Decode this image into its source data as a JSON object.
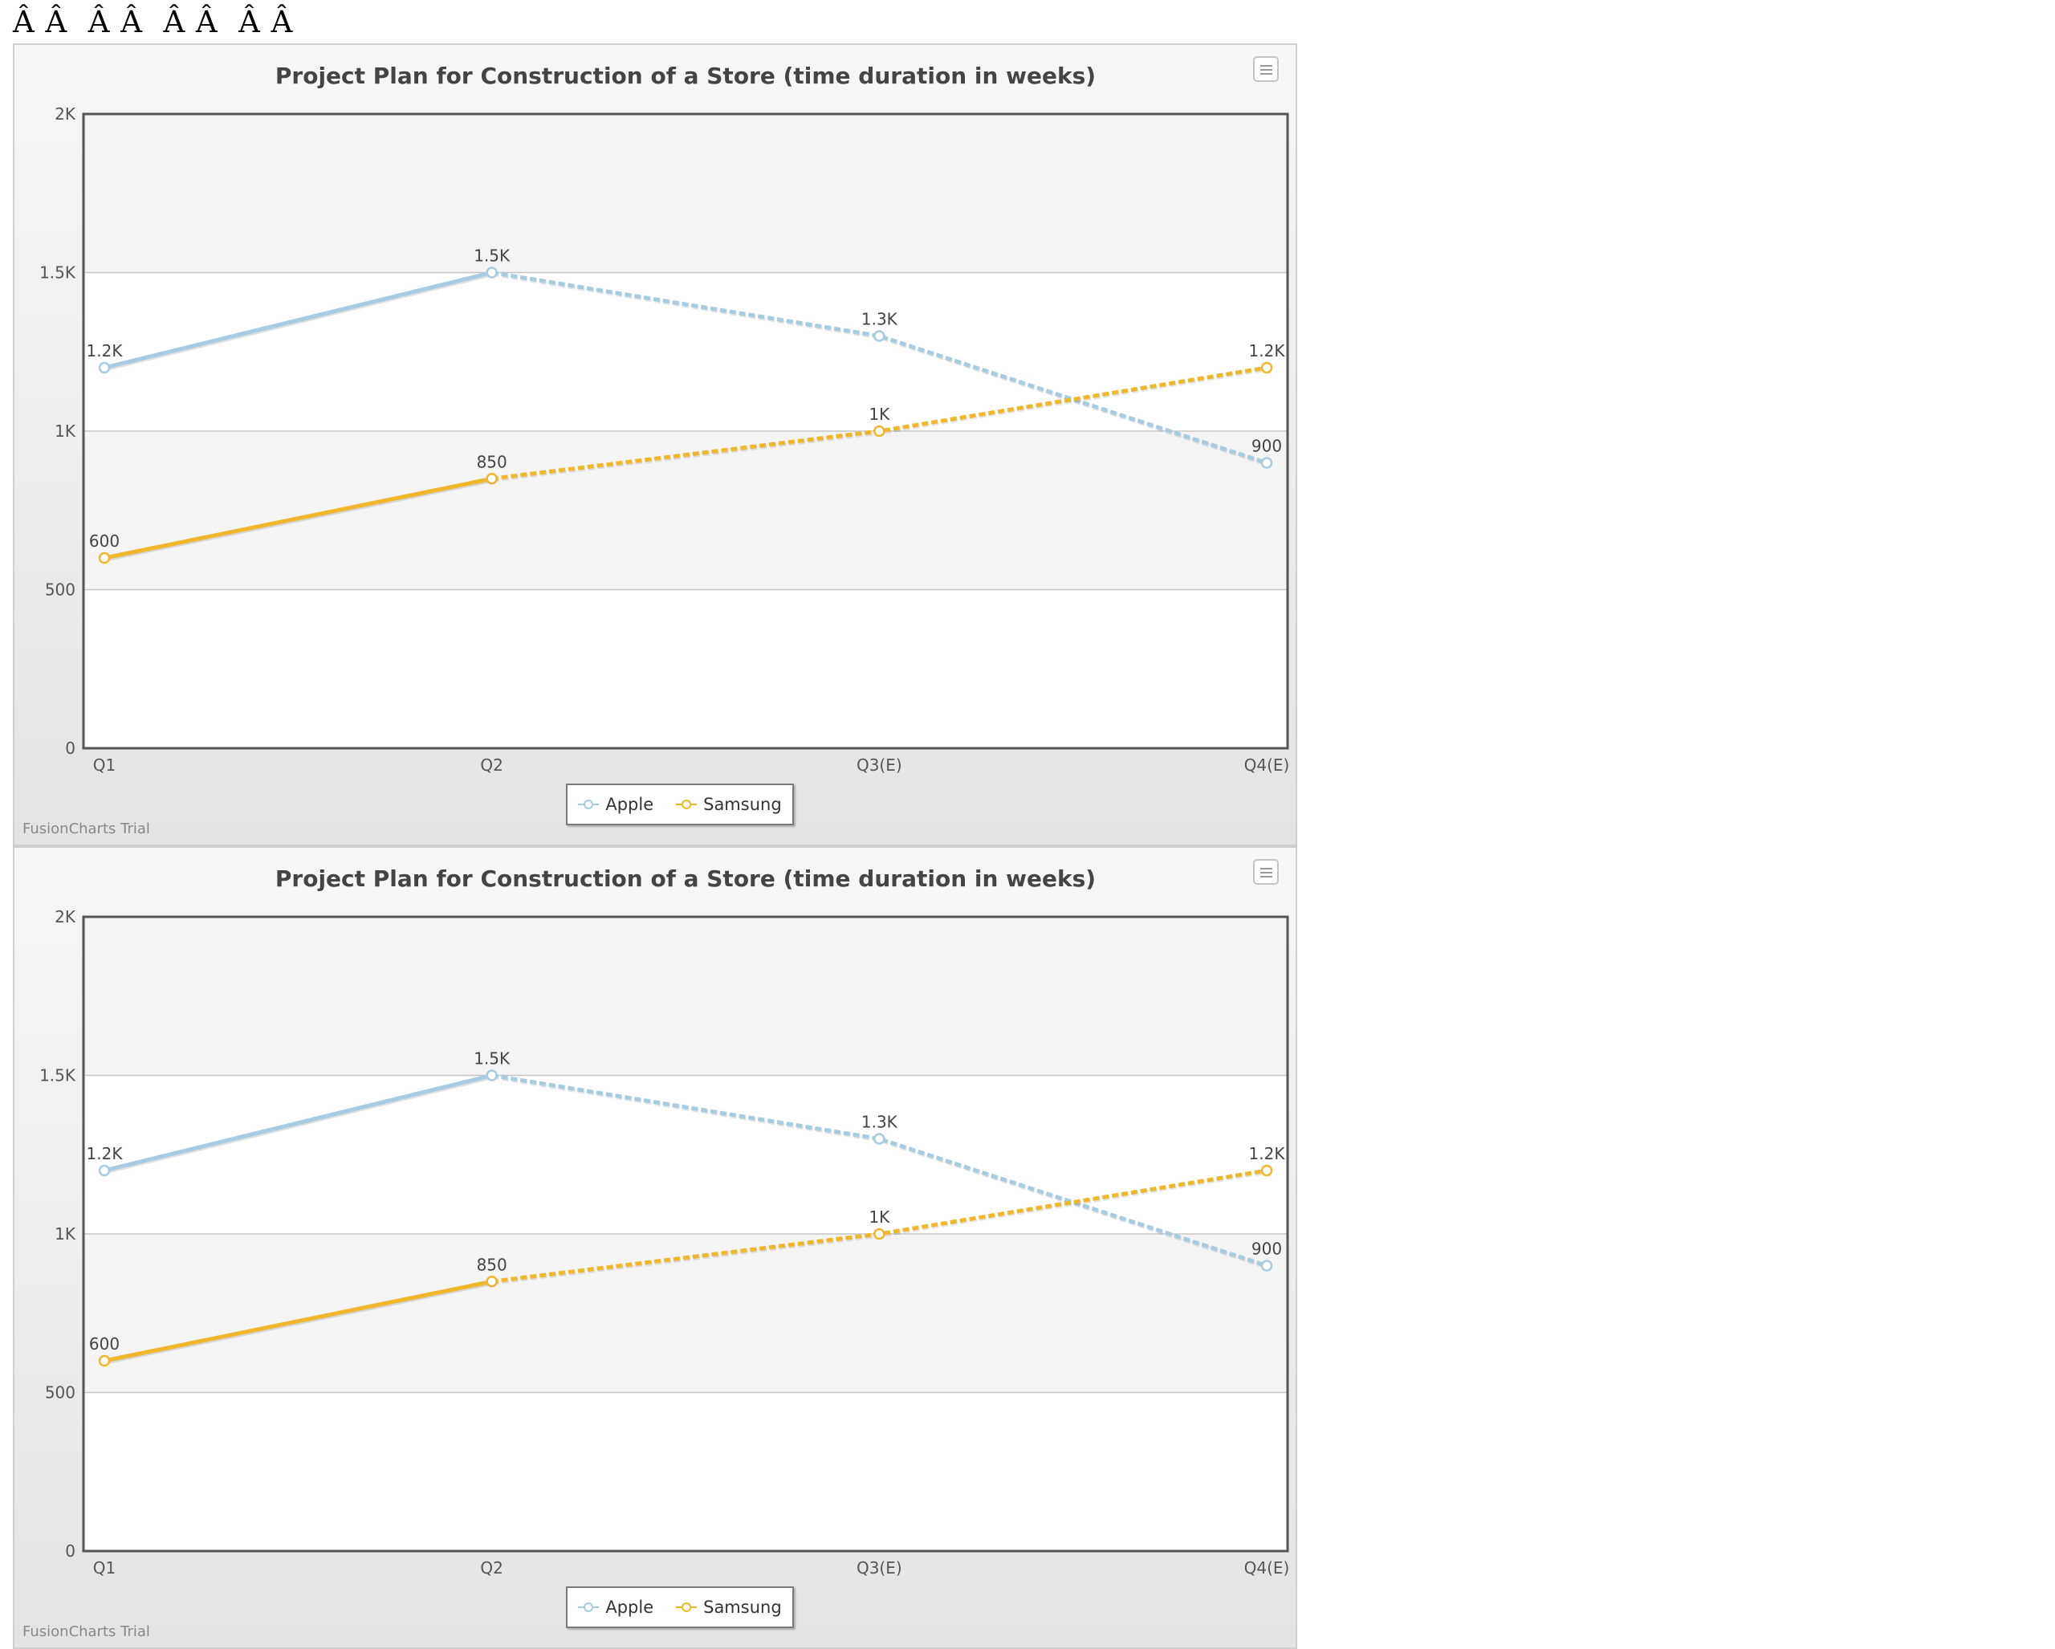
{
  "page": {
    "header_text": "Â Â  Â Â  Â Â  Â Â"
  },
  "charts_common": {
    "watermark": "FusionCharts Trial"
  },
  "colors": {
    "apple": "#a7cbe0",
    "samsung": "#f0b72d",
    "axis": "#555555",
    "grid": "#c6c6c6"
  },
  "icons": {
    "menu": "hamburger-menu-icon"
  },
  "chart_data": [
    {
      "type": "line",
      "title": "Project Plan for Construction of a Store (time duration in weeks)",
      "categories": [
        "Q1",
        "Q2",
        "Q3(E)",
        "Q4(E)"
      ],
      "y_ticks": [
        "0",
        "500",
        "1K",
        "1.5K",
        "2K"
      ],
      "ylim": [
        0,
        2000
      ],
      "grid": true,
      "legend_position": "bottom-center",
      "dashed_from_index": 1,
      "series": [
        {
          "name": "Apple",
          "values": [
            1200,
            1500,
            1300,
            900
          ],
          "labels": [
            "1.2K",
            "1.5K",
            "1.3K",
            "900"
          ]
        },
        {
          "name": "Samsung",
          "values": [
            600,
            850,
            1000,
            1200
          ],
          "labels": [
            "600",
            "850",
            "1K",
            "1.2K"
          ]
        }
      ]
    },
    {
      "type": "line",
      "title": "Project Plan for Construction of a Store (time duration in weeks)",
      "categories": [
        "Q1",
        "Q2",
        "Q3(E)",
        "Q4(E)"
      ],
      "y_ticks": [
        "0",
        "500",
        "1K",
        "1.5K",
        "2K"
      ],
      "ylim": [
        0,
        2000
      ],
      "grid": true,
      "legend_position": "bottom-center",
      "dashed_from_index": 1,
      "series": [
        {
          "name": "Apple",
          "values": [
            1200,
            1500,
            1300,
            900
          ],
          "labels": [
            "1.2K",
            "1.5K",
            "1.3K",
            "900"
          ]
        },
        {
          "name": "Samsung",
          "values": [
            600,
            850,
            1000,
            1200
          ],
          "labels": [
            "600",
            "850",
            "1K",
            "1.2K"
          ]
        }
      ]
    }
  ]
}
